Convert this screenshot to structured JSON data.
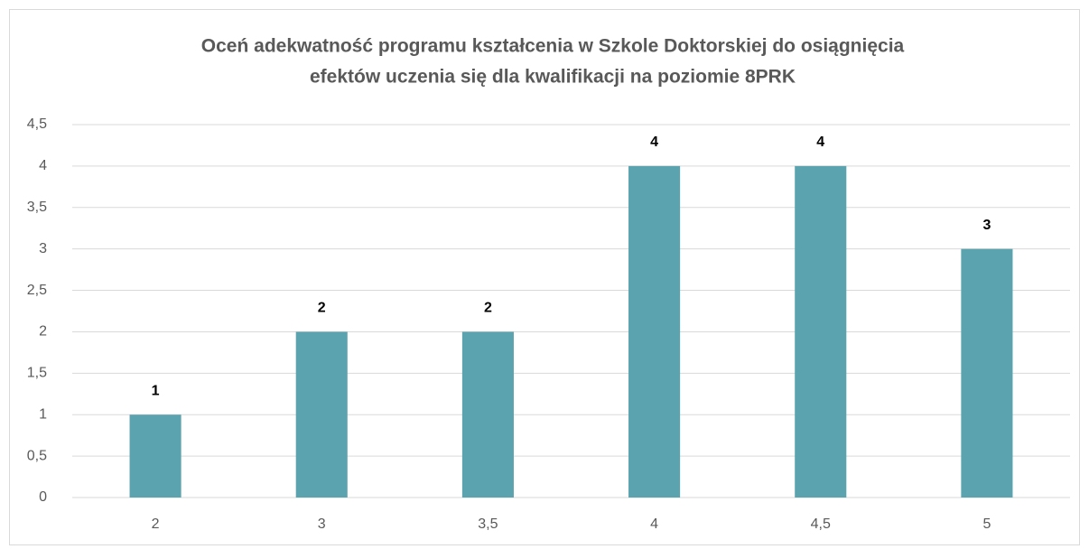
{
  "chart_data": {
    "type": "bar",
    "title": [
      "Oceń adekwatność programu kształcenia w Szkole Doktorskiej do osiągnięcia",
      "efektów uczenia się dla kwalifikacji na poziomie 8PRK"
    ],
    "categories": [
      "2",
      "3",
      "3,5",
      "4",
      "4,5",
      "5"
    ],
    "values": [
      1,
      2,
      2,
      4,
      4,
      3
    ],
    "color": "#5ba3af",
    "ylim": [
      0,
      4.5
    ],
    "yticks": [
      0,
      {
        "value": 0.5,
        "label": "0,5"
      },
      1,
      {
        "value": 1.5,
        "label": "1,5"
      },
      2,
      {
        "value": 2.5,
        "label": "2,5"
      },
      3,
      {
        "value": 3.5,
        "label": "3,5"
      },
      4,
      {
        "value": 4.5,
        "label": "4,5"
      }
    ],
    "grid": true
  }
}
